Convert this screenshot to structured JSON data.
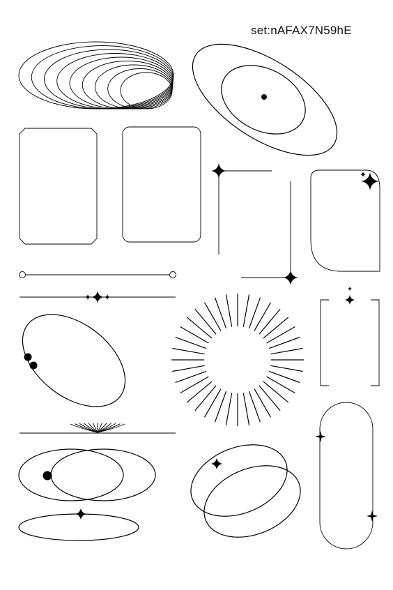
{
  "set_code": "set:nAFAX7N59hE",
  "colors": {
    "stroke": "#000000",
    "background": "#ffffff"
  },
  "elements": [
    {
      "name": "nested-ellipses"
    },
    {
      "name": "tilted-ellipses-with-dot"
    },
    {
      "name": "chamfered-frame"
    },
    {
      "name": "rounded-frame"
    },
    {
      "name": "corner-bracket-frame-with-sparkles"
    },
    {
      "name": "arch-frame-with-sparkle"
    },
    {
      "name": "dumbbell-line-divider"
    },
    {
      "name": "sparkle-line-divider"
    },
    {
      "name": "tilted-ellipse-with-two-dots"
    },
    {
      "name": "sunburst-ring"
    },
    {
      "name": "bracket-frame-with-sparkles"
    },
    {
      "name": "fan-line-divider"
    },
    {
      "name": "overlapping-ellipses-with-dot"
    },
    {
      "name": "flat-ellipse-with-sparkle"
    },
    {
      "name": "overlapping-tilted-ellipses-with-sparkle"
    },
    {
      "name": "capsule-frame-with-sparkles"
    }
  ]
}
